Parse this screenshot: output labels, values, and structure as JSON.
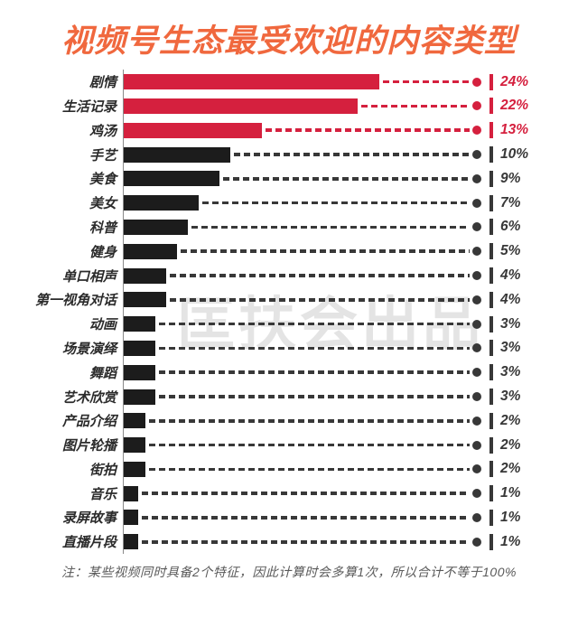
{
  "page": {
    "title": "视频号生态最受欢迎的内容类型",
    "note": "注：某些视频同时具备2个特征，因此计算时会多算1次，所以合计不等于100%",
    "watermark": "匡扶会出品"
  },
  "palette": {
    "title_orange": "#f0683e",
    "highlight_red": "#d5203e",
    "bar_black": "#1c1c1c",
    "accent_gray": "#383838",
    "label_color": "#2b2b2b",
    "axis_gray": "#8a8a8a",
    "watermark_gray": "#e4e4e4",
    "note_gray": "#595959"
  },
  "chart_data": {
    "type": "bar",
    "orientation": "horizontal",
    "title": "视频号生态最受欢迎的内容类型",
    "xlabel": "",
    "ylabel": "",
    "unit": "%",
    "xlim": [
      0,
      24
    ],
    "grid": false,
    "legend": "none",
    "highlight_count": 3,
    "categories": [
      "剧情",
      "生活记录",
      "鸡汤",
      "手艺",
      "美食",
      "美女",
      "科普",
      "健身",
      "单口相声",
      "第一视角对话",
      "动画",
      "场景演绎",
      "舞蹈",
      "艺术欣赏",
      "产品介绍",
      "图片轮播",
      "街拍",
      "音乐",
      "录屏故事",
      "直播片段"
    ],
    "values": [
      24,
      22,
      13,
      10,
      9,
      7,
      6,
      5,
      4,
      4,
      3,
      3,
      3,
      3,
      2,
      2,
      2,
      1,
      1,
      1
    ],
    "value_labels": [
      "24%",
      "22%",
      "13%",
      "10%",
      "9%",
      "7%",
      "6%",
      "5%",
      "4%",
      "4%",
      "3%",
      "3%",
      "3%",
      "3%",
      "2%",
      "2%",
      "2%",
      "1%",
      "1%",
      "1%"
    ],
    "highlighted": [
      true,
      true,
      true,
      false,
      false,
      false,
      false,
      false,
      false,
      false,
      false,
      false,
      false,
      false,
      false,
      false,
      false,
      false,
      false,
      false
    ]
  }
}
